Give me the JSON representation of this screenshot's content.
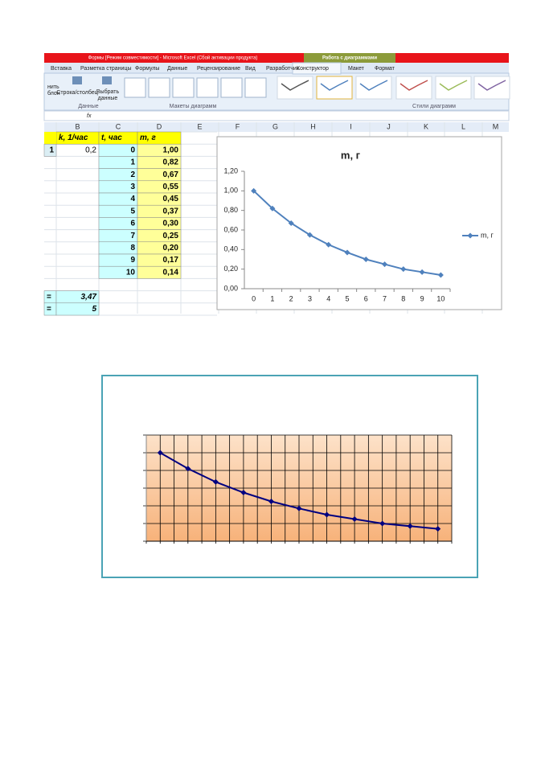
{
  "window": {
    "title": "Формы [Режим совместимости] - Microsoft Excel (Сбой активации продукта)",
    "context_tab": "Работа с диаграммами",
    "tabs": [
      "Вставка",
      "Разметка страницы",
      "Формулы",
      "Данные",
      "Рецензирование",
      "Вид",
      "Разработчик",
      "Конструктор",
      "Макет",
      "Формат"
    ]
  },
  "ribbon": {
    "left_labels": [
      "нить",
      "блон"
    ],
    "button_row_col": "Строка/столбец",
    "button_select": [
      "Выбрать",
      "данные"
    ],
    "groups": [
      "Данные",
      "Макеты диаграмм",
      "Стили диаграмм"
    ]
  },
  "formula_bar": {
    "fx": "fx"
  },
  "sheet": {
    "columns": [
      "B",
      "C",
      "D",
      "E",
      "F",
      "G",
      "H",
      "I",
      "J",
      "K",
      "L",
      "M"
    ],
    "header": [
      "k, 1/час",
      "t, час",
      "m, г"
    ],
    "k_row": [
      "1",
      "0,2"
    ],
    "t": [
      "0",
      "1",
      "2",
      "3",
      "4",
      "5",
      "6",
      "7",
      "8",
      "9",
      "10"
    ],
    "m": [
      "1,00",
      "0,82",
      "0,67",
      "0,55",
      "0,45",
      "0,37",
      "0,30",
      "0,25",
      "0,20",
      "0,17",
      "0,14"
    ],
    "results": [
      [
        "=",
        "3,47"
      ],
      [
        "=",
        "5"
      ]
    ]
  },
  "chart_data": [
    {
      "type": "line",
      "title": "m, г",
      "categories": [
        0,
        1,
        2,
        3,
        4,
        5,
        6,
        7,
        8,
        9,
        10
      ],
      "series": [
        {
          "name": "m, г",
          "color": "#4f81bd",
          "values": [
            1.0,
            0.82,
            0.67,
            0.55,
            0.45,
            0.37,
            0.3,
            0.25,
            0.2,
            0.17,
            0.14
          ]
        }
      ],
      "ylim": [
        0,
        1.2
      ],
      "yticks": [
        {
          "value": 0,
          "label": "0,00"
        },
        {
          "value": 0.2,
          "label": "0,20"
        },
        {
          "value": 0.4,
          "label": "0,40"
        },
        {
          "value": 0.6,
          "label": "0,60"
        },
        {
          "value": 0.8,
          "label": "0,80"
        },
        {
          "value": 1,
          "label": "1,00"
        },
        {
          "value": 1.2,
          "label": "1,20"
        }
      ],
      "grid": false,
      "legend": "right"
    },
    {
      "type": "line",
      "categories": [
        null,
        null,
        null,
        null,
        null,
        null,
        null,
        null,
        null,
        null,
        null
      ],
      "series": [
        {
          "color": "#000080",
          "values": [
            1.0,
            0.82,
            0.67,
            0.55,
            0.45,
            0.37,
            0.3,
            0.25,
            0.2,
            0.17,
            0.14
          ]
        }
      ],
      "ylim": [
        0,
        1.2
      ],
      "yticks": [
        0,
        0.2,
        0.4,
        0.6,
        0.8,
        1,
        1.2
      ],
      "grid": true
    }
  ]
}
